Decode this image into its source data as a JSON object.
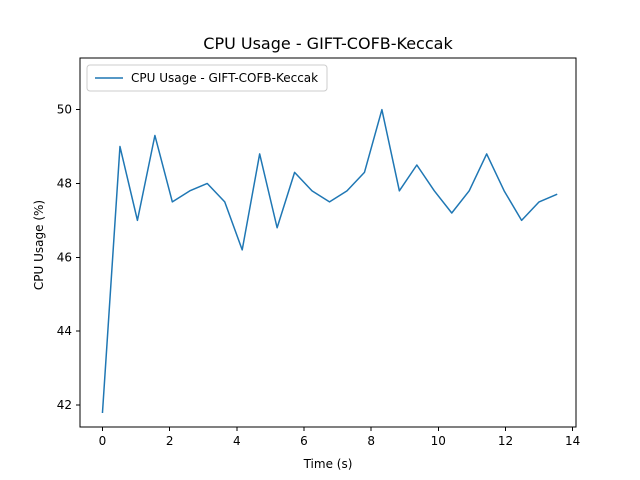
{
  "chart_data": {
    "type": "line",
    "title": "CPU Usage - GIFT-COFB-Keccak",
    "xlabel": "Time (s)",
    "ylabel": "CPU Usage (%)",
    "xlim": [
      -0.67,
      14.1
    ],
    "ylim": [
      41.4,
      51.4
    ],
    "xticks": [
      0,
      2,
      4,
      6,
      8,
      10,
      12,
      14
    ],
    "yticks": [
      42,
      44,
      46,
      48,
      50
    ],
    "grid": false,
    "legend": "upper left",
    "series": [
      {
        "name": "CPU Usage - GIFT-COFB-Keccak",
        "color": "#1f77b4",
        "x": [
          0.0,
          0.52,
          1.04,
          1.56,
          2.08,
          2.6,
          3.12,
          3.64,
          4.16,
          4.68,
          5.2,
          5.72,
          6.24,
          6.76,
          7.28,
          7.8,
          8.32,
          8.84,
          9.36,
          9.88,
          10.4,
          10.92,
          11.44,
          11.96,
          12.48,
          13.0,
          13.52
        ],
        "y": [
          41.8,
          49.0,
          47.0,
          49.3,
          47.5,
          47.8,
          48.0,
          47.5,
          46.2,
          48.8,
          46.8,
          48.3,
          47.8,
          47.5,
          47.8,
          48.3,
          50.0,
          47.8,
          48.5,
          47.8,
          47.2,
          47.8,
          48.8,
          47.8,
          47.0,
          47.5,
          47.7
        ]
      }
    ]
  }
}
